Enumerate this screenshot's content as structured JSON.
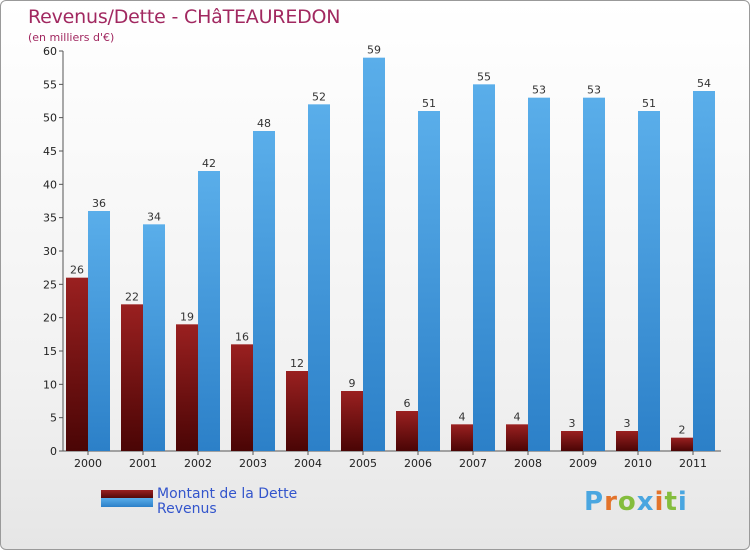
{
  "chart_data": {
    "type": "bar",
    "title": "Revenus/Dette - CHâTEAUREDON",
    "subtitle": "(en milliers d'€)",
    "categories": [
      "2000",
      "2001",
      "2002",
      "2003",
      "2004",
      "2005",
      "2006",
      "2007",
      "2008",
      "2009",
      "2010",
      "2011"
    ],
    "series": [
      {
        "name": "Montant de la Dette",
        "color": "#7a1010",
        "values": [
          26,
          22,
          19,
          16,
          12,
          9,
          6,
          4,
          4,
          3,
          3,
          2
        ]
      },
      {
        "name": "Revenus",
        "color": "#3a93de",
        "values": [
          36,
          34,
          42,
          48,
          52,
          59,
          51,
          55,
          53,
          53,
          51,
          54
        ]
      }
    ],
    "ylim": [
      0,
      60
    ],
    "yticks": [
      0,
      5,
      10,
      15,
      20,
      25,
      30,
      35,
      40,
      45,
      50,
      55,
      60
    ],
    "grid": false,
    "legend_position": "bottom-left"
  },
  "logo": {
    "text": "Proxiti",
    "letters": [
      "P",
      "r",
      "o",
      "x",
      "i",
      "t",
      "i"
    ],
    "colors": [
      "#4aa6e0",
      "#e3732a",
      "#84bd3d",
      "#4aa6e0",
      "#e3732a",
      "#84bd3d",
      "#4aa6e0"
    ]
  }
}
